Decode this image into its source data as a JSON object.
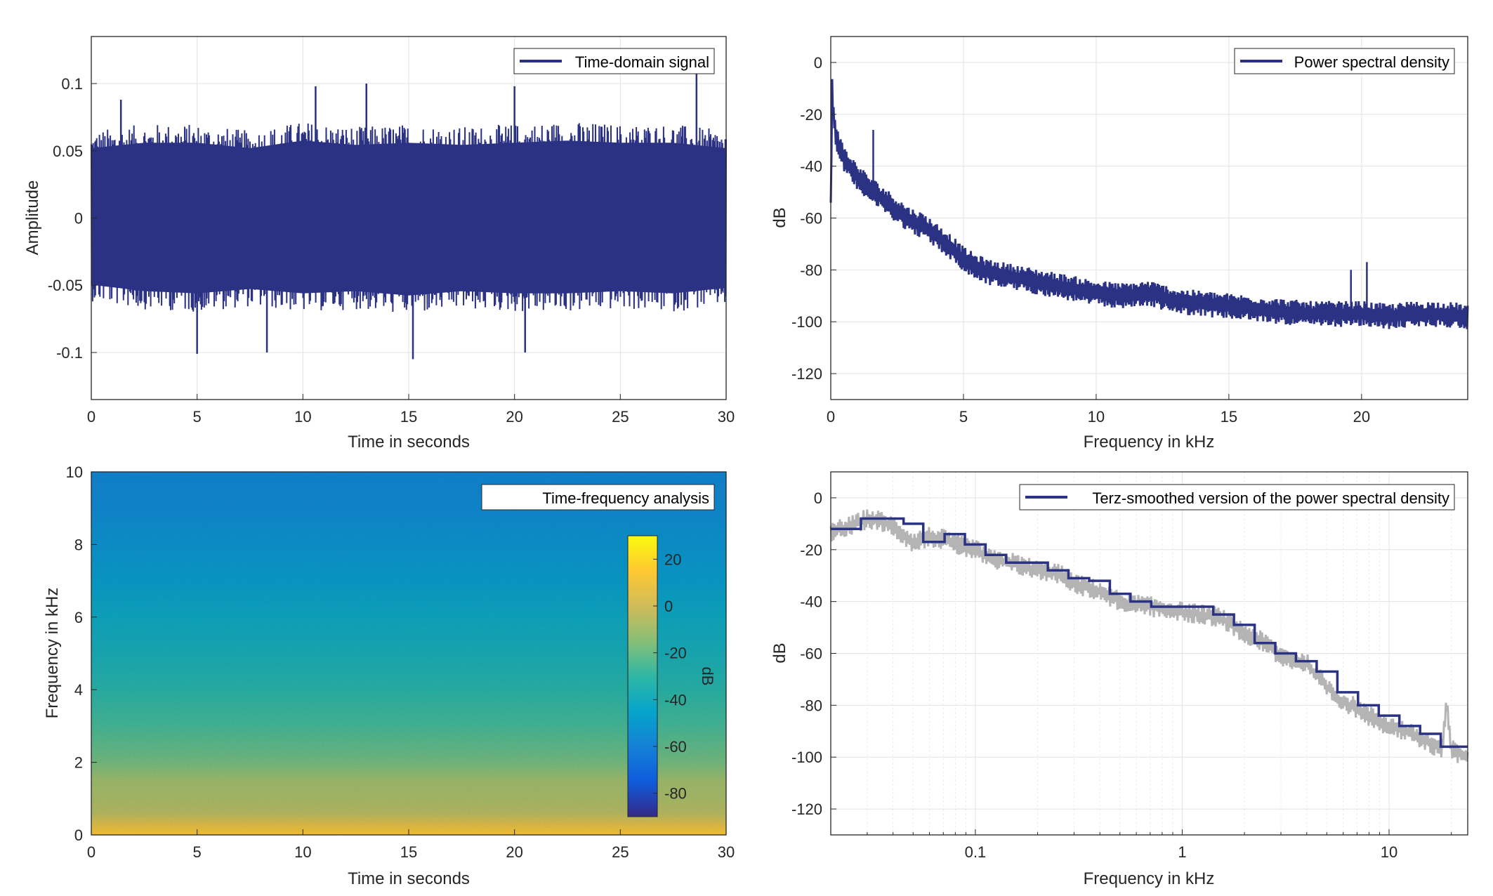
{
  "chart_data": [
    {
      "type": "line",
      "legend": [
        "Time-domain signal"
      ],
      "legend_position": "top-right",
      "xlabel": "Time in seconds",
      "ylabel": "Amplitude",
      "xlim": [
        0,
        30
      ],
      "ylim": [
        -0.135,
        0.135
      ],
      "xticks": [
        0,
        5,
        10,
        15,
        20,
        25,
        30
      ],
      "yticks": [
        -0.1,
        -0.05,
        0,
        0.05,
        0.1
      ],
      "ytick_labels": [
        "-0.1",
        "-0.05",
        "0",
        "0.05",
        "0.1"
      ],
      "grid": true,
      "series": [
        {
          "name": "Time-domain signal",
          "color": "#2b3283",
          "envelope": {
            "x": [
              0,
              2.5,
              5,
              7.5,
              10,
              12.5,
              15,
              17.5,
              20,
              22.5,
              25,
              27.5,
              30
            ],
            "upper": [
              0.065,
              0.07,
              0.07,
              0.065,
              0.072,
              0.068,
              0.07,
              0.068,
              0.07,
              0.072,
              0.07,
              0.07,
              0.065
            ],
            "lower": [
              -0.062,
              -0.068,
              -0.07,
              -0.066,
              -0.07,
              -0.068,
              -0.072,
              -0.068,
              -0.07,
              -0.07,
              -0.068,
              -0.07,
              -0.065
            ]
          },
          "peaks": [
            {
              "x": 1.4,
              "y": 0.088
            },
            {
              "x": 5.0,
              "y": -0.101
            },
            {
              "x": 8.3,
              "y": -0.1
            },
            {
              "x": 10.6,
              "y": 0.098
            },
            {
              "x": 13.0,
              "y": 0.1
            },
            {
              "x": 15.2,
              "y": -0.105
            },
            {
              "x": 20.0,
              "y": 0.098
            },
            {
              "x": 20.5,
              "y": -0.1
            },
            {
              "x": 28.6,
              "y": 0.108
            }
          ]
        }
      ]
    },
    {
      "type": "line",
      "legend": [
        "Power spectral density"
      ],
      "legend_position": "top-right",
      "xlabel": "Frequency in kHz",
      "ylabel": "dB",
      "xlim": [
        0,
        24
      ],
      "ylim": [
        -130,
        10
      ],
      "xticks": [
        0,
        5,
        10,
        15,
        20
      ],
      "yticks": [
        0,
        -20,
        -40,
        -60,
        -80,
        -100,
        -120
      ],
      "grid": true,
      "series": [
        {
          "name": "Power spectral density",
          "color": "#2b3283",
          "x": [
            0,
            0.05,
            0.1,
            0.2,
            0.4,
            0.6,
            1.0,
            1.5,
            2,
            2.5,
            3,
            3.5,
            4,
            4.5,
            5,
            5.5,
            6,
            7,
            8,
            9,
            10,
            11,
            12,
            13,
            14,
            15,
            16,
            17,
            18,
            19,
            20,
            21,
            22,
            23,
            24
          ],
          "y": [
            -57,
            -10,
            -20,
            -28,
            -35,
            -39,
            -44,
            -49,
            -53,
            -57,
            -61,
            -63,
            -67,
            -71,
            -76,
            -79,
            -81,
            -83,
            -85,
            -87,
            -89,
            -90,
            -89,
            -92,
            -93,
            -94,
            -95,
            -96,
            -97,
            -97,
            -97,
            -98,
            -97,
            -97,
            -98
          ],
          "spikes": [
            {
              "x": 1.6,
              "y": -26
            },
            {
              "x": 19.6,
              "y": -80
            },
            {
              "x": 20.2,
              "y": -77
            }
          ]
        }
      ]
    },
    {
      "type": "heatmap",
      "legend": [
        "Time-frequency analysis"
      ],
      "legend_position": "top-right",
      "xlabel": "Time in seconds",
      "ylabel": "Frequency in kHz",
      "xlim": [
        0,
        30
      ],
      "ylim": [
        0,
        10
      ],
      "xticks": [
        0,
        5,
        10,
        15,
        20,
        25,
        30
      ],
      "yticks": [
        0,
        2,
        4,
        6,
        8,
        10
      ],
      "colorbar": {
        "label": "dB",
        "range": [
          -90,
          30
        ],
        "ticks": [
          20,
          0,
          -20,
          -40,
          -60,
          -80
        ],
        "colormap": "parula"
      },
      "level_profile": {
        "freq_khz": [
          0,
          0.3,
          0.6,
          1,
          1.5,
          2,
          3,
          4,
          5,
          6,
          7,
          8,
          9,
          10
        ],
        "db": [
          15,
          5,
          -5,
          -8,
          -10,
          -18,
          -26,
          -32,
          -38,
          -42,
          -48,
          -52,
          -56,
          -58
        ]
      }
    },
    {
      "type": "line",
      "legend": [
        "Terz-smoothed version of the power spectral density"
      ],
      "legend_position": "top-right",
      "xlabel": "Frequency in kHz",
      "ylabel": "dB",
      "xscale": "log",
      "xlim": [
        0.02,
        24
      ],
      "ylim": [
        -130,
        10
      ],
      "xticks": [
        0.1,
        1,
        10
      ],
      "xtick_labels": [
        "0.1",
        "1",
        "10"
      ],
      "yticks": [
        0,
        -20,
        -40,
        -60,
        -80,
        -100,
        -120
      ],
      "grid": true,
      "series": [
        {
          "name": "Terz-smoothed version of the power spectral density",
          "color": "#2b3283",
          "step_edges": [
            0.02,
            0.028,
            0.045,
            0.056,
            0.071,
            0.089,
            0.112,
            0.141,
            0.178,
            0.224,
            0.282,
            0.355,
            0.447,
            0.562,
            0.708,
            0.891,
            1.122,
            1.413,
            1.778,
            2.239,
            2.818,
            3.548,
            4.467,
            5.623,
            7.079,
            8.913,
            11.22,
            14.13,
            17.78,
            24
          ],
          "step_values": [
            -12,
            -8,
            -10,
            -17,
            -14,
            -18,
            -22,
            -25,
            -25,
            -28,
            -31,
            -32,
            -37,
            -40,
            -42,
            -42,
            -42,
            -45,
            -49,
            -56,
            -60,
            -63,
            -67,
            -75,
            -80,
            -84,
            -88,
            -91,
            -96
          ]
        },
        {
          "color": "#b4b4b4",
          "x": [
            0.02,
            0.025,
            0.03,
            0.035,
            0.04,
            0.05,
            0.06,
            0.07,
            0.08,
            0.1,
            0.12,
            0.15,
            0.2,
            0.25,
            0.3,
            0.4,
            0.5,
            0.7,
            1,
            1.5,
            2,
            2.5,
            3,
            4,
            5,
            6,
            7,
            8,
            10,
            12,
            15,
            18,
            19,
            20,
            22,
            24
          ],
          "y": [
            -13,
            -11,
            -8,
            -9,
            -11,
            -17,
            -15,
            -16,
            -18,
            -20,
            -24,
            -25,
            -28,
            -29,
            -33,
            -36,
            -40,
            -42,
            -44,
            -46,
            -52,
            -56,
            -61,
            -64,
            -73,
            -79,
            -81,
            -84,
            -88,
            -90,
            -94,
            -97,
            -80,
            -97,
            -99,
            -100
          ]
        }
      ]
    }
  ]
}
